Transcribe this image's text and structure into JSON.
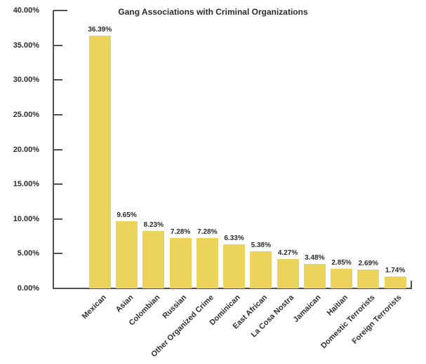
{
  "chart_data": {
    "type": "bar",
    "title": "Gang Associations with Criminal Organizations",
    "categories": [
      "Mexican",
      "Asian",
      "Colombian",
      "Russian",
      "Other Organized Crime",
      "Dominican",
      "East African",
      "La Cosa Nostra",
      "Jamaican",
      "Haitian",
      "Domestic Terrorists",
      "Foreign Terrorists"
    ],
    "values": [
      36.39,
      9.65,
      8.23,
      7.28,
      7.28,
      6.33,
      5.38,
      4.27,
      3.48,
      2.85,
      2.69,
      1.74
    ],
    "value_labels": [
      "36.39%",
      "9.65%",
      "8.23%",
      "7.28%",
      "7.28%",
      "6.33%",
      "5.38%",
      "4.27%",
      "3.48%",
      "2.85%",
      "2.69%",
      "1.74%"
    ],
    "xlabel": "",
    "ylabel": "",
    "ylim": [
      0,
      40
    ],
    "y_tick_labels": [
      "0.00%",
      "5.00%",
      "10.00%",
      "15.00%",
      "20.00%",
      "25.00%",
      "30.00%",
      "35.00%",
      "40.00%"
    ],
    "y_tick_values": [
      0,
      5,
      10,
      15,
      20,
      25,
      30,
      35,
      40
    ],
    "grid": false,
    "legend": null,
    "bar_color": "#ECD45C",
    "axis_color": "#4F4F4F",
    "text_color": "#2B2B2B"
  }
}
